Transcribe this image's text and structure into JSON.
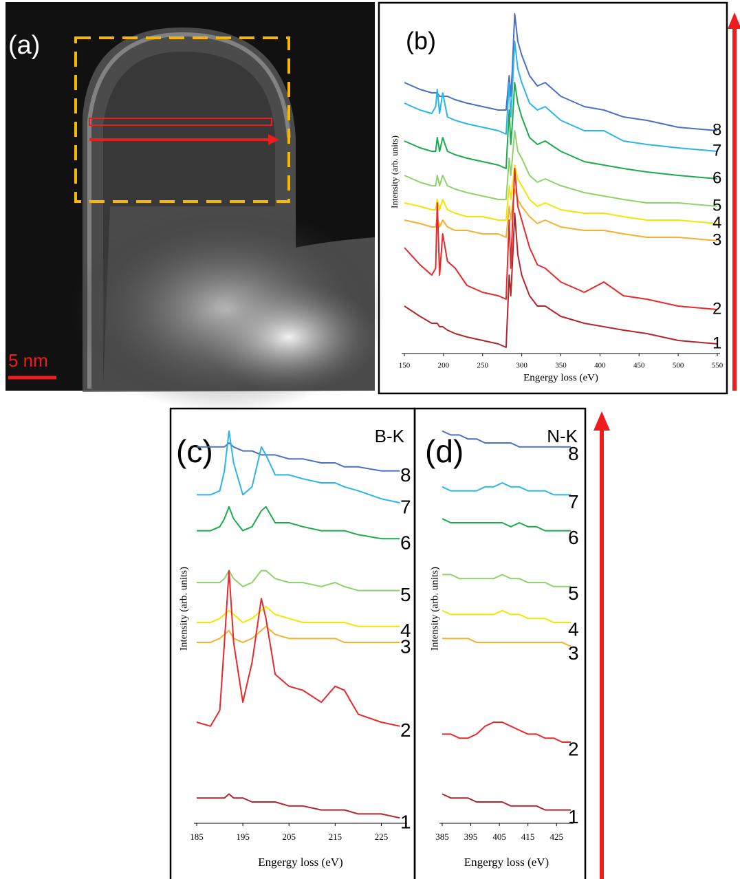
{
  "image_panel": {
    "label": "(a)",
    "scale_bar": "5 nm"
  },
  "chart_data": [
    {
      "type": "line",
      "panel_label": "(b)",
      "x_label": "Engergy loss (eV)",
      "y_label": "Intensity (arb. units)",
      "xlim": [
        150,
        550
      ],
      "ylim": [
        0,
        100
      ],
      "xticks": [
        150,
        200,
        250,
        300,
        350,
        400,
        450,
        500,
        550
      ],
      "x": [
        150,
        170,
        185,
        190,
        192,
        195,
        199,
        205,
        215,
        230,
        250,
        270,
        280,
        284,
        286,
        288,
        291,
        295,
        300,
        310,
        320,
        330,
        350,
        380,
        405,
        430,
        460,
        500,
        550
      ],
      "series": [
        {
          "name": "8",
          "color": "#4a6fc4",
          "values": [
            80,
            78,
            77,
            77,
            77,
            76,
            76,
            76,
            75,
            74,
            73,
            72,
            72,
            82,
            76,
            84,
            100,
            92,
            88,
            82,
            79,
            80,
            76,
            73,
            72,
            70,
            69,
            67,
            66
          ]
        },
        {
          "name": "7",
          "color": "#29b5e8",
          "values": [
            74,
            72,
            71,
            73,
            78,
            71,
            77,
            70,
            69,
            68,
            67,
            66,
            65,
            80,
            70,
            78,
            92,
            84,
            80,
            74,
            72,
            73,
            69,
            66,
            66,
            63,
            62,
            61,
            60
          ]
        },
        {
          "name": "6",
          "color": "#1aab4b",
          "values": [
            63,
            61,
            60,
            60,
            64,
            60,
            64,
            60,
            59,
            58,
            57,
            56,
            55,
            72,
            62,
            68,
            80,
            74,
            70,
            64,
            62,
            63,
            60,
            57,
            56,
            55,
            54,
            53,
            52
          ]
        },
        {
          "name": "5",
          "color": "#8fd16a",
          "values": [
            53,
            51,
            50,
            50,
            53,
            50,
            53,
            50,
            49,
            48,
            47,
            46,
            46,
            58,
            53,
            58,
            66,
            60,
            58,
            53,
            51,
            52,
            50,
            48,
            47,
            46,
            45,
            45,
            44
          ]
        },
        {
          "name": "4",
          "color": "#f2e600",
          "values": [
            45,
            44,
            43,
            43,
            46,
            43,
            46,
            43,
            42,
            41,
            41,
            40,
            40,
            50,
            46,
            50,
            56,
            52,
            50,
            46,
            44,
            45,
            43,
            42,
            42,
            41,
            40,
            40,
            39
          ]
        },
        {
          "name": "3",
          "color": "#f5b030",
          "values": [
            40,
            39,
            38,
            38,
            41,
            38,
            40,
            38,
            37,
            37,
            36,
            36,
            35,
            44,
            40,
            44,
            49,
            46,
            44,
            41,
            39,
            40,
            38,
            37,
            37,
            36,
            35,
            35,
            34
          ]
        },
        {
          "name": "2",
          "color": "#e8282a",
          "values": [
            32,
            27,
            24,
            26,
            45,
            24,
            36,
            28,
            26,
            21,
            19,
            18,
            17,
            40,
            26,
            38,
            55,
            44,
            40,
            32,
            27,
            26,
            22,
            19,
            22,
            18,
            17,
            15,
            14
          ]
        },
        {
          "name": "1",
          "color": "#b2262b",
          "values": [
            15,
            12,
            10,
            10,
            10,
            9,
            9,
            8,
            7,
            6,
            5,
            4,
            3,
            24,
            18,
            27,
            42,
            30,
            24,
            18,
            15,
            15,
            12,
            10,
            9,
            8,
            7,
            5,
            4
          ]
        }
      ]
    },
    {
      "type": "line",
      "panel_label": "(c)",
      "annotation": "B-K",
      "x_label": "Engergy loss (eV)",
      "y_label": "Intensity (arb. units)",
      "xlim": [
        185,
        230
      ],
      "ylim": [
        0,
        100
      ],
      "xticks": [
        185,
        195,
        205,
        215,
        225
      ],
      "x": [
        185,
        188,
        190,
        191,
        192,
        193,
        195,
        197,
        199,
        200,
        202,
        205,
        208,
        212,
        215,
        217,
        220,
        225,
        229
      ],
      "series": [
        {
          "name": "8",
          "color": "#4a6fc4",
          "values": [
            94,
            94,
            94,
            94,
            95,
            94,
            93,
            93,
            92,
            92,
            92,
            91,
            91,
            90,
            90,
            89,
            89,
            88,
            88
          ]
        },
        {
          "name": "7",
          "color": "#29b5e8",
          "values": [
            82,
            82,
            83,
            88,
            98,
            90,
            82,
            84,
            94,
            92,
            87,
            87,
            86,
            85,
            85,
            84,
            83,
            81,
            80
          ]
        },
        {
          "name": "6",
          "color": "#1aab4b",
          "values": [
            73,
            73,
            74,
            76,
            79,
            76,
            73,
            74,
            78,
            79,
            75,
            75,
            74,
            73,
            73,
            73,
            72,
            71,
            71
          ]
        },
        {
          "name": "5",
          "color": "#8fd16a",
          "values": [
            60,
            60,
            60,
            61,
            63,
            61,
            59,
            60,
            63,
            63,
            61,
            60,
            60,
            59,
            60,
            59,
            58,
            58,
            58
          ]
        },
        {
          "name": "4",
          "color": "#f2e600",
          "values": [
            50,
            50,
            51,
            52,
            53,
            52,
            50,
            51,
            53,
            54,
            52,
            51,
            50,
            50,
            50,
            50,
            49,
            49,
            49
          ]
        },
        {
          "name": "3",
          "color": "#f5b030",
          "values": [
            45,
            45,
            46,
            47,
            48,
            46,
            45,
            46,
            48,
            49,
            47,
            46,
            46,
            46,
            46,
            45,
            45,
            45,
            45
          ]
        },
        {
          "name": "2",
          "color": "#e8282a",
          "values": [
            25,
            24,
            28,
            45,
            63,
            45,
            30,
            40,
            56,
            51,
            37,
            34,
            33,
            30,
            34,
            33,
            27,
            25,
            24
          ]
        },
        {
          "name": "1",
          "color": "#b2262b",
          "values": [
            6,
            6,
            6,
            6,
            7,
            6,
            6,
            5,
            5,
            5,
            5,
            4,
            4,
            3,
            3,
            3,
            2,
            2,
            1
          ]
        }
      ]
    },
    {
      "type": "line",
      "panel_label": "(d)",
      "annotation": "N-K",
      "x_label": "Engergy loss (eV)",
      "y_label": "Intensity (arb. units)",
      "xlim": [
        385,
        430
      ],
      "ylim": [
        0,
        100
      ],
      "xticks": [
        385,
        395,
        405,
        415,
        425
      ],
      "x": [
        385,
        388,
        391,
        394,
        397,
        400,
        403,
        406,
        409,
        412,
        415,
        418,
        421,
        424,
        427,
        430
      ],
      "series": [
        {
          "name": "8",
          "color": "#4a6fc4",
          "values": [
            98,
            97,
            97,
            96,
            96,
            95,
            95,
            95,
            95,
            94,
            94,
            94,
            94,
            94,
            94,
            94
          ]
        },
        {
          "name": "7",
          "color": "#29b5e8",
          "values": [
            84,
            83,
            83,
            83,
            83,
            84,
            84,
            85,
            84,
            84,
            83,
            83,
            83,
            82,
            82,
            82
          ]
        },
        {
          "name": "6",
          "color": "#1aab4b",
          "values": [
            76,
            75,
            75,
            75,
            75,
            75,
            75,
            75,
            74,
            75,
            74,
            74,
            73,
            73,
            73,
            73
          ]
        },
        {
          "name": "5",
          "color": "#8fd16a",
          "values": [
            62,
            62,
            61,
            61,
            61,
            61,
            61,
            62,
            61,
            61,
            60,
            60,
            60,
            59,
            59,
            59
          ]
        },
        {
          "name": "4",
          "color": "#f2e600",
          "values": [
            53,
            52,
            52,
            52,
            52,
            52,
            52,
            53,
            52,
            52,
            51,
            51,
            51,
            50,
            50,
            50
          ]
        },
        {
          "name": "3",
          "color": "#f5b030",
          "values": [
            46,
            46,
            46,
            46,
            45,
            45,
            45,
            45,
            45,
            45,
            45,
            45,
            45,
            45,
            45,
            44
          ]
        },
        {
          "name": "2",
          "color": "#e8282a",
          "values": [
            22,
            22,
            21,
            21,
            22,
            24,
            25,
            25,
            24,
            23,
            22,
            22,
            21,
            21,
            20,
            20
          ]
        },
        {
          "name": "1",
          "color": "#b2262b",
          "values": [
            7,
            6,
            6,
            6,
            5,
            5,
            5,
            5,
            4,
            4,
            4,
            4,
            3,
            3,
            3,
            3
          ]
        }
      ]
    }
  ]
}
